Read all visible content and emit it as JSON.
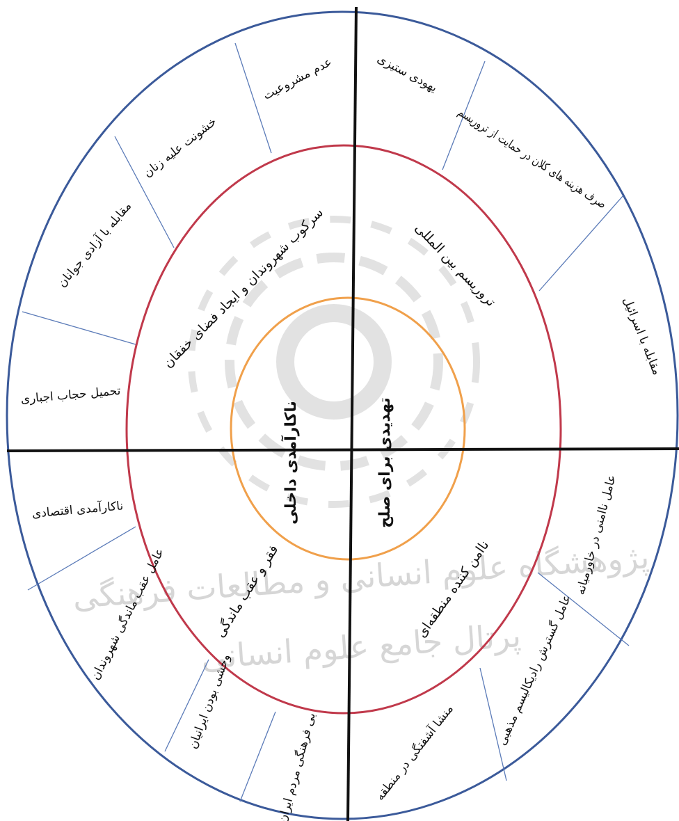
{
  "watermark": {
    "line1": "پژوهشگاه علوم انسانی و مطالعات فرهنگی",
    "line2": "پرتال جامع علوم انسانی"
  },
  "colors": {
    "outer_ring": "#3b5a9a",
    "middle_ring": "#c0394b",
    "inner_ring": "#f0a04b",
    "axes": "#111111",
    "dividers": "#5b7bb8",
    "watermark": "#d6d6d6"
  },
  "core": {
    "left": "ناکارآمدی داخلی",
    "right": "تهدیدی برای صلح"
  },
  "middle": {
    "upper_left": "سرکوب شهروندان و ایجاد فضای خفقان",
    "upper_right": "تروریسم بین المللی",
    "lower_left": "فقر و عقب ماندگی",
    "lower_right": "ناامن کننده منطقه‌ای"
  },
  "outer": [
    {
      "text": "عدم مشروعیت"
    },
    {
      "text": "خشونت علیه زنان"
    },
    {
      "text": "مقابله با آزادی جوانان"
    },
    {
      "text": "تحمیل حجاب اجباری"
    },
    {
      "text": "یهودی ستیزی"
    },
    {
      "text": "صرف هزینه های کلان در حمایت از تروریسم"
    },
    {
      "text": "مقابله با اسرائیل"
    },
    {
      "text": "ناکارآمدی اقتصادی"
    },
    {
      "text": "عامل عقب ماندگی شهروندان"
    },
    {
      "text": "وحشی بودن ایرانیان"
    },
    {
      "text": "بی فرهنگی مردم ایران"
    },
    {
      "text": "عامل ناامنی در خاورمیانه"
    },
    {
      "text": "عامل گسترش رادیکالیسم مذهبی"
    },
    {
      "text": "منشا آشفتگی در منطقه"
    }
  ]
}
